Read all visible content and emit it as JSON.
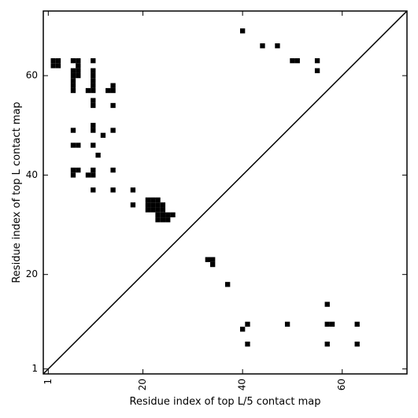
{
  "chart_data": {
    "type": "heatmap",
    "title": "",
    "xlabel": "Residue index of top L/5 contact map",
    "ylabel": "Residue index of top L contact map",
    "xlim": [
      0,
      73
    ],
    "ylim": [
      0,
      73
    ],
    "xticks": [
      {
        "value": 1,
        "label": "1"
      },
      {
        "value": 20,
        "label": "20"
      },
      {
        "value": 40,
        "label": "40"
      },
      {
        "value": 60,
        "label": "60"
      }
    ],
    "yticks": [
      {
        "value": 1,
        "label": "1"
      },
      {
        "value": 20,
        "label": "20"
      },
      {
        "value": 40,
        "label": "40"
      },
      {
        "value": 60,
        "label": "60"
      }
    ],
    "diagonal": true,
    "grid": false,
    "cell_color": "#000000",
    "upper_triangle_cells": [
      [
        2,
        63
      ],
      [
        2,
        62
      ],
      [
        3,
        63
      ],
      [
        3,
        62
      ],
      [
        6,
        63
      ],
      [
        7,
        63
      ],
      [
        7,
        62
      ],
      [
        6,
        61
      ],
      [
        7,
        61
      ],
      [
        6,
        60
      ],
      [
        7,
        60
      ],
      [
        6,
        59
      ],
      [
        6,
        58
      ],
      [
        6,
        57
      ],
      [
        10,
        63
      ],
      [
        10,
        61
      ],
      [
        10,
        60
      ],
      [
        10,
        59
      ],
      [
        10,
        58
      ],
      [
        9,
        57
      ],
      [
        10,
        57
      ],
      [
        13,
        57
      ],
      [
        14,
        57
      ],
      [
        14,
        58
      ],
      [
        10,
        55
      ],
      [
        10,
        54
      ],
      [
        14,
        54
      ],
      [
        10,
        50
      ],
      [
        10,
        49
      ],
      [
        6,
        49
      ],
      [
        14,
        49
      ],
      [
        12,
        48
      ],
      [
        6,
        46
      ],
      [
        7,
        46
      ],
      [
        10,
        46
      ],
      [
        11,
        44
      ],
      [
        6,
        41
      ],
      [
        7,
        41
      ],
      [
        10,
        41
      ],
      [
        14,
        41
      ],
      [
        6,
        40
      ],
      [
        9,
        40
      ],
      [
        10,
        40
      ],
      [
        10,
        37
      ],
      [
        14,
        37
      ],
      [
        18,
        37
      ],
      [
        21,
        35
      ],
      [
        22,
        35
      ],
      [
        23,
        35
      ],
      [
        21,
        34
      ],
      [
        22,
        34
      ],
      [
        23,
        34
      ],
      [
        24,
        34
      ],
      [
        18,
        34
      ],
      [
        21,
        33
      ],
      [
        22,
        33
      ],
      [
        23,
        33
      ],
      [
        24,
        33
      ],
      [
        23,
        32
      ],
      [
        24,
        32
      ],
      [
        25,
        32
      ],
      [
        26,
        32
      ],
      [
        23,
        31
      ],
      [
        24,
        31
      ],
      [
        25,
        31
      ],
      [
        40,
        69
      ],
      [
        44,
        66
      ],
      [
        47,
        66
      ],
      [
        50,
        63
      ],
      [
        51,
        63
      ],
      [
        55,
        63
      ],
      [
        55,
        61
      ]
    ],
    "lower_triangle_cells": [
      [
        33,
        23
      ],
      [
        34,
        23
      ],
      [
        34,
        22
      ],
      [
        37,
        18
      ],
      [
        57,
        14
      ],
      [
        41,
        10
      ],
      [
        49,
        10
      ],
      [
        57,
        10
      ],
      [
        58,
        10
      ],
      [
        63,
        10
      ],
      [
        40,
        9
      ],
      [
        41,
        6
      ],
      [
        57,
        6
      ],
      [
        63,
        6
      ]
    ]
  }
}
